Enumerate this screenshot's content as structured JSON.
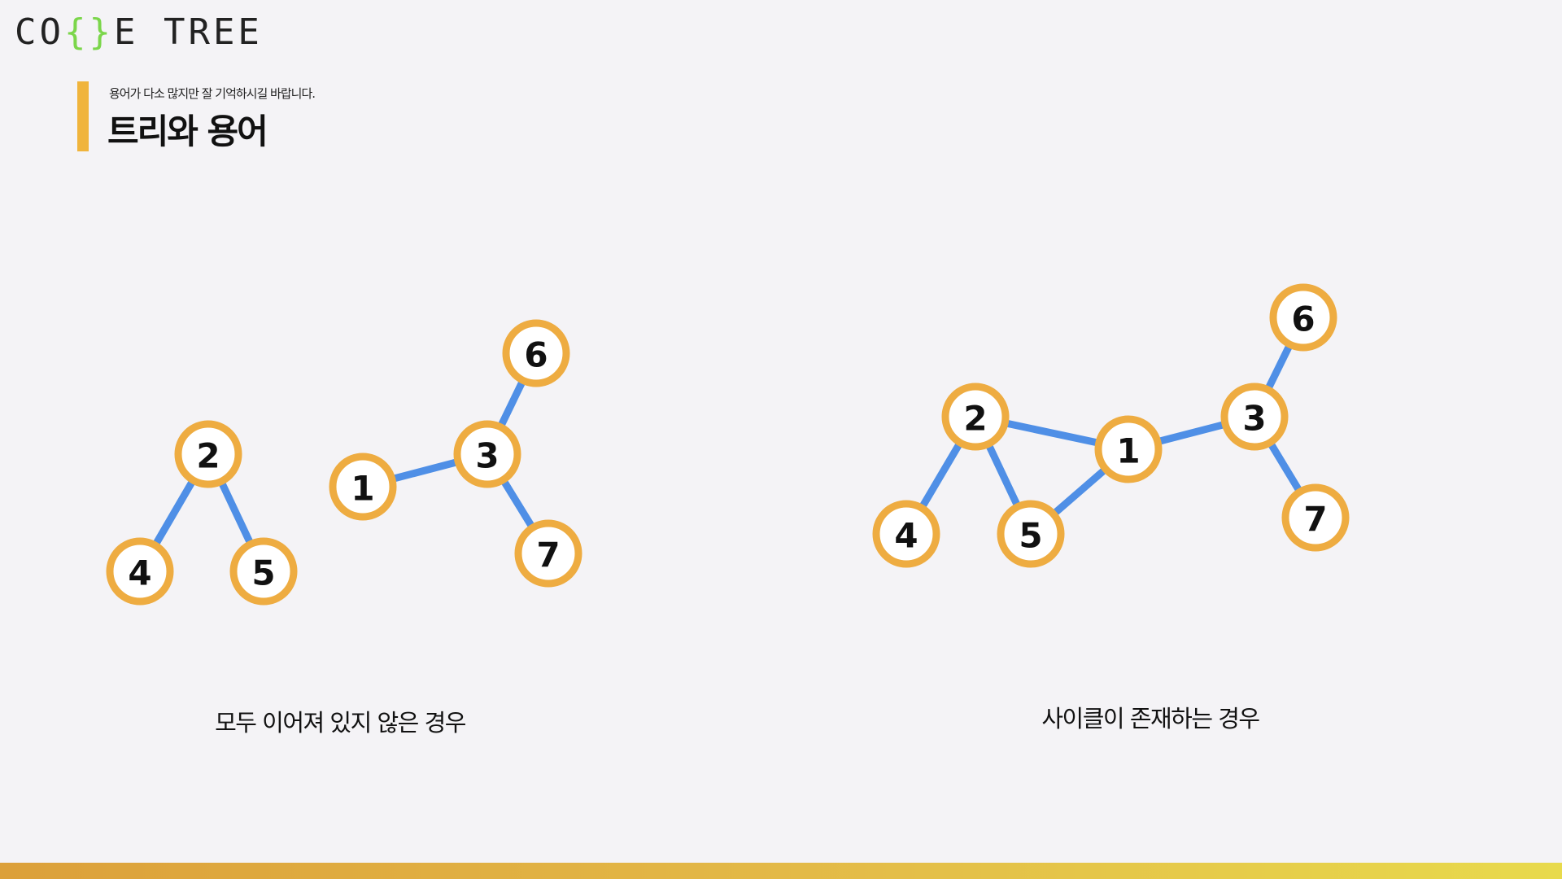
{
  "logo": {
    "part1": "CO",
    "brace_open": "{",
    "brace_close": "}",
    "part2": "E TREE",
    "brand_color": "#7bd64b"
  },
  "header": {
    "subtitle": "용어가 다소 많지만 잘 기억하시길 바랍니다.",
    "title": "트리와 용어",
    "accent_color": "#f0b43c"
  },
  "diagrams": [
    {
      "caption": "모두 이어져 있지 않은 경우",
      "nodes": [
        "2",
        "4",
        "5",
        "1",
        "3",
        "6",
        "7"
      ],
      "edges": [
        [
          "2",
          "4"
        ],
        [
          "2",
          "5"
        ],
        [
          "1",
          "3"
        ],
        [
          "3",
          "6"
        ],
        [
          "3",
          "7"
        ]
      ]
    },
    {
      "caption": "사이클이 존재하는 경우",
      "nodes": [
        "2",
        "4",
        "5",
        "1",
        "3",
        "6",
        "7"
      ],
      "edges": [
        [
          "2",
          "4"
        ],
        [
          "2",
          "5"
        ],
        [
          "2",
          "1"
        ],
        [
          "5",
          "1"
        ],
        [
          "1",
          "3"
        ],
        [
          "3",
          "6"
        ],
        [
          "3",
          "7"
        ]
      ]
    }
  ],
  "colors": {
    "node_border": "#eeac41",
    "edge": "#4f8fe6",
    "background": "#f4f3f6"
  }
}
